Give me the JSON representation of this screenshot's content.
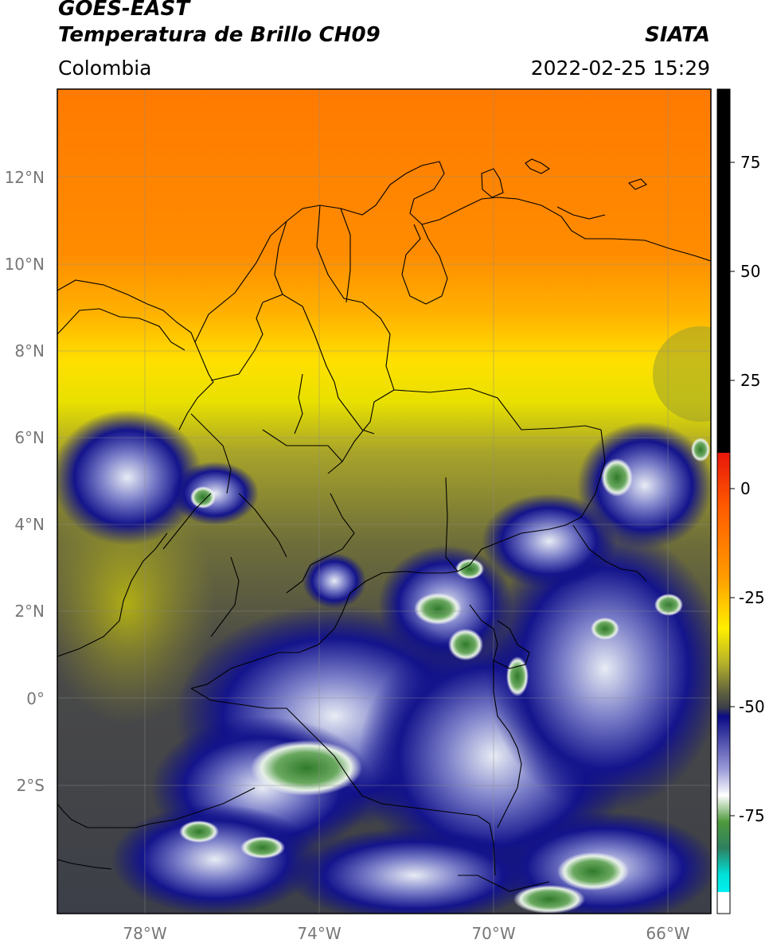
{
  "header": {
    "title_line1": "GOES-EAST",
    "title_line2": "Temperatura de Brillo CH09",
    "agency": "SIATA",
    "region": "Colombia",
    "timestamp": "2022-02-25 15:29"
  },
  "axes": {
    "lat_labels": [
      "12°N",
      "10°N",
      "8°N",
      "6°N",
      "4°N",
      "2°N",
      "0°",
      "2°S"
    ],
    "lon_labels": [
      "78°W",
      "74°W",
      "70°W",
      "66°W"
    ],
    "lat_range": [
      -4.6,
      14.1
    ],
    "lon_range": [
      -80.0,
      -65.0
    ],
    "grid": true
  },
  "colorbar": {
    "tick_labels": [
      "75",
      "50",
      "25",
      "0",
      "-25",
      "-50",
      "-75"
    ],
    "tick_values": [
      75,
      50,
      25,
      0,
      -25,
      -50,
      -75
    ],
    "range": [
      -95,
      90
    ],
    "colors": {
      "black": "#000000",
      "red": "#e8160a",
      "orange": "#ff8a00",
      "yellow": "#ffef00",
      "olive": "#9a9a24",
      "dark_gray": "#3c3f48",
      "navy": "#0b0b85",
      "white": "#ffffff",
      "green": "#3f8f2c",
      "cyan": "#00e0d8"
    }
  }
}
